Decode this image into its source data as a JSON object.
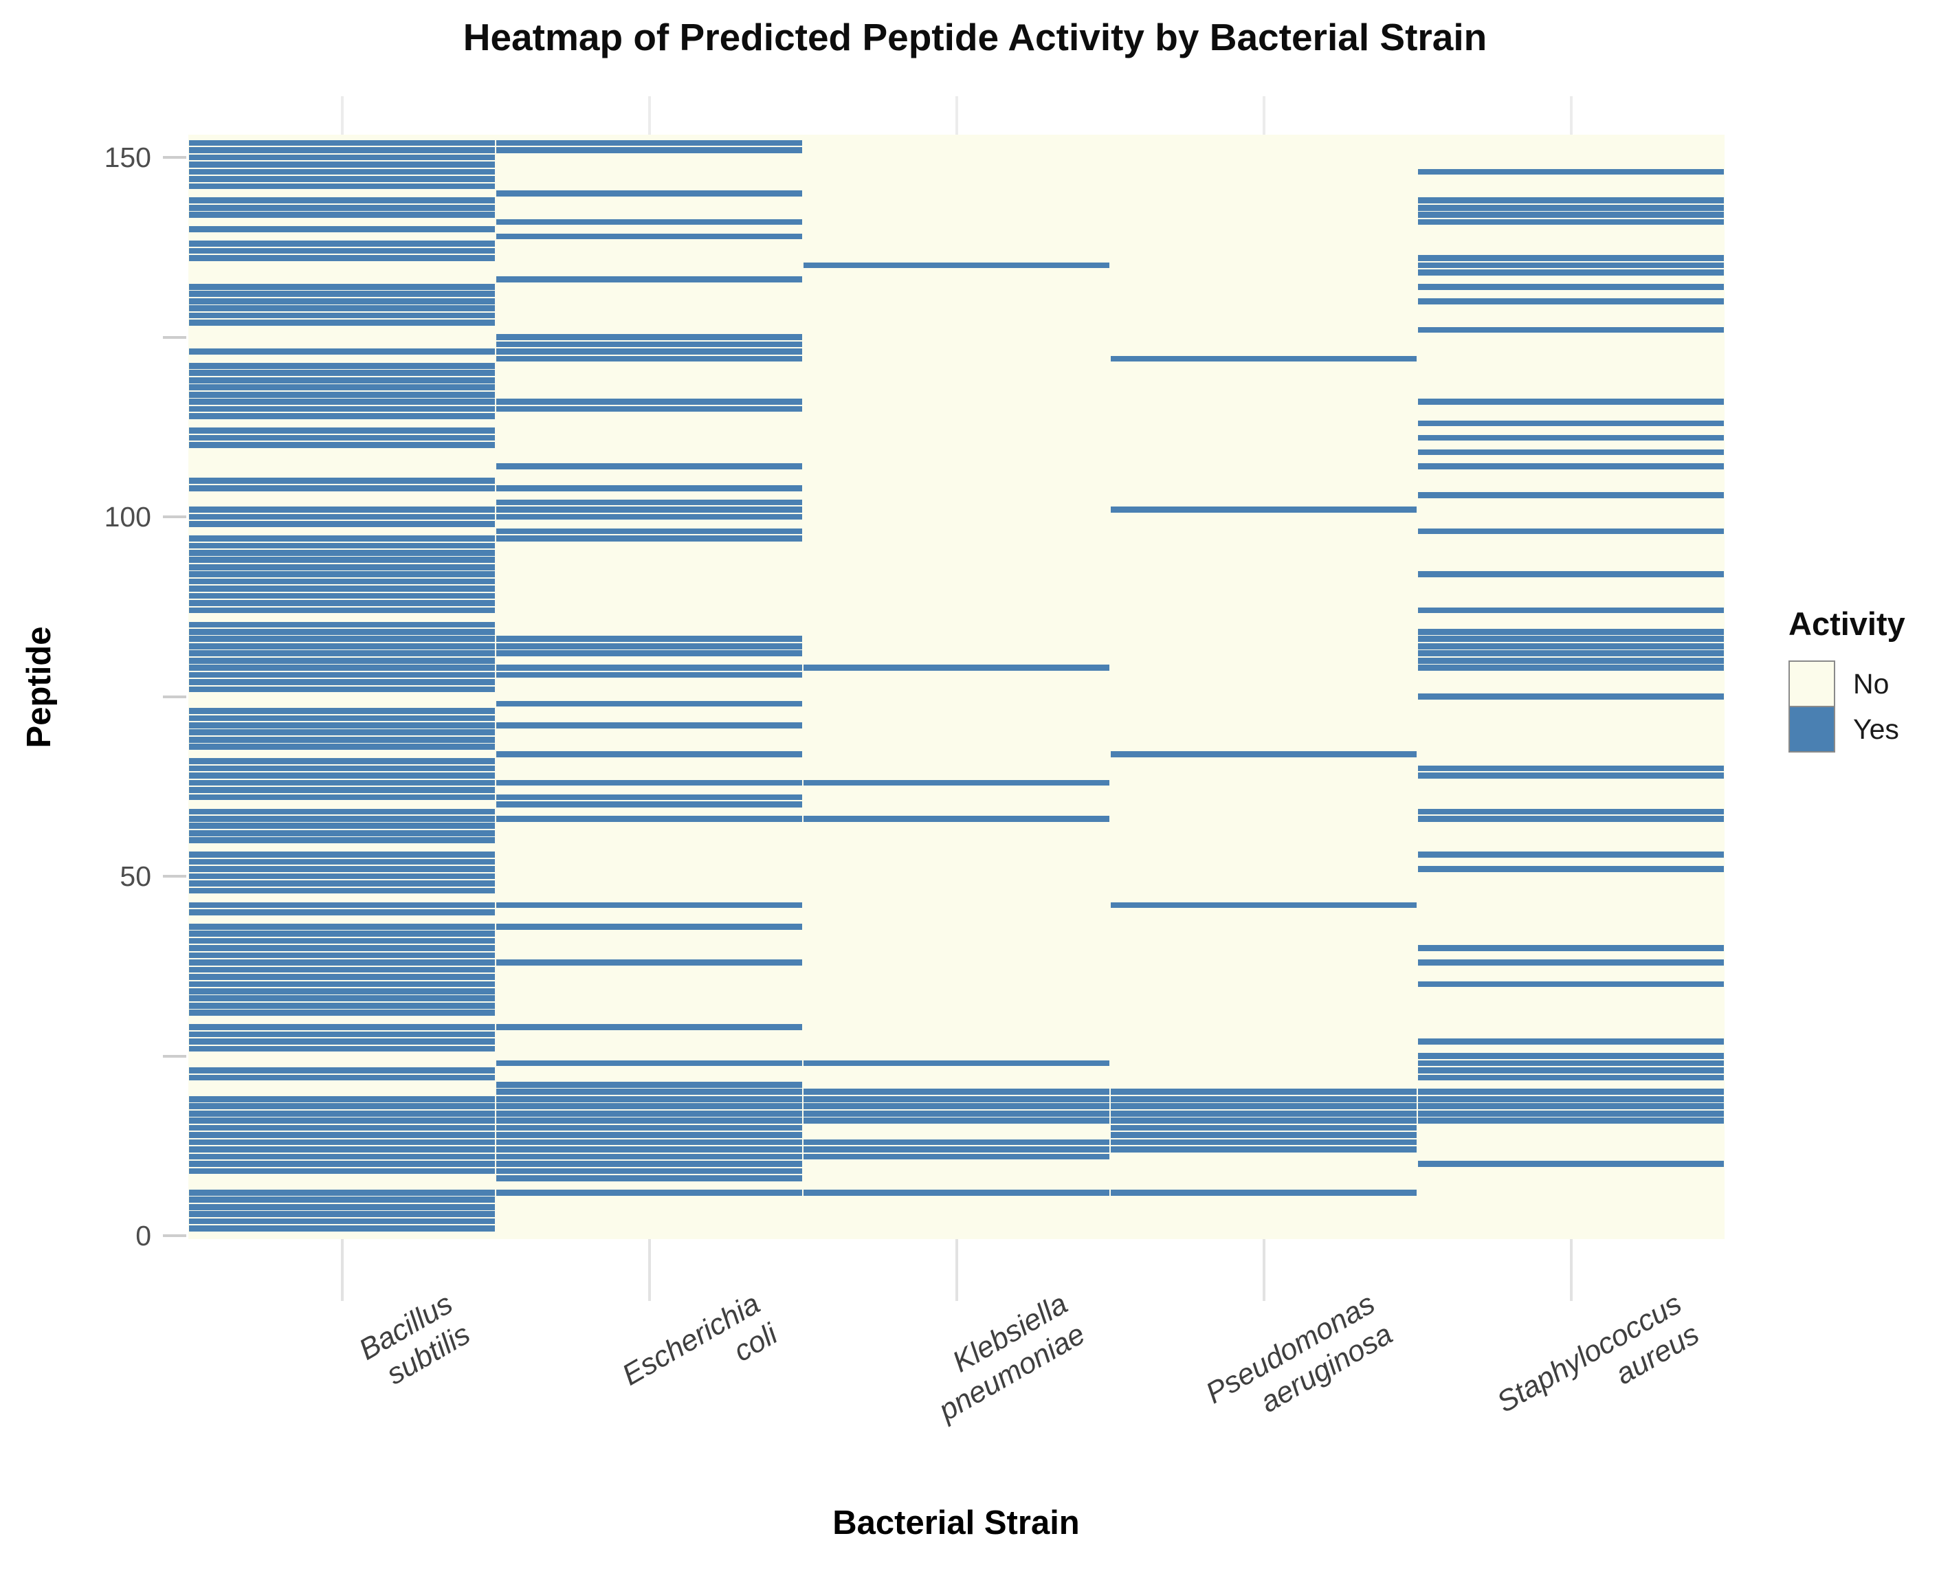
{
  "title": {
    "text": "Heatmap of Predicted Peptide Activity by Bacterial Strain"
  },
  "axes": {
    "x_label": "Bacterial Strain",
    "y_label": "Peptide",
    "y_tick_labels": [
      "0",
      "50",
      "100",
      "150"
    ]
  },
  "legend": {
    "title": "Activity",
    "items": [
      {
        "label": "No",
        "color": "#FCFCEB"
      },
      {
        "label": "Yes",
        "color": "#4A80B2"
      }
    ]
  },
  "colors": {
    "active": "#4A80B2",
    "inactive": "#FCFCEB",
    "tick": "#CDCDCD",
    "tick_label": "#4D4D4D",
    "strain_label": "#3F3F3F"
  },
  "chart_data": {
    "type": "heatmap",
    "title": "Heatmap of Predicted Peptide Activity by Bacterial Strain",
    "xlabel": "Bacterial Strain",
    "ylabel": "Peptide",
    "legend": {
      "title": "Activity",
      "categories": [
        "No",
        "Yes"
      ],
      "colors": {
        "No": "#FCFCEB",
        "Yes": "#4A80B2"
      },
      "position": "right"
    },
    "y_axis": {
      "range": [
        0,
        152
      ],
      "labeled_ticks": [
        0,
        50,
        100,
        150
      ],
      "minor_ticks": [
        25,
        75,
        125
      ]
    },
    "n_peptides": 152,
    "cell_values": {
      "No": 0,
      "Yes": 1
    },
    "strains": [
      {
        "name": "Bacillus subtilis",
        "label_lines": [
          "Bacillus",
          "subtilis"
        ],
        "active_peptide_ranges": [
          [
            1,
            6
          ],
          [
            9,
            19
          ],
          [
            22,
            23
          ],
          [
            26,
            29
          ],
          [
            31,
            43
          ],
          [
            45,
            46
          ],
          [
            48,
            53
          ],
          [
            55,
            59
          ],
          [
            61,
            66
          ],
          [
            68,
            73
          ],
          [
            76,
            85
          ],
          [
            87,
            97
          ],
          [
            99,
            101
          ],
          [
            104,
            105
          ],
          [
            110,
            112
          ],
          [
            114,
            121
          ],
          [
            123,
            123
          ],
          [
            127,
            132
          ],
          [
            136,
            138
          ],
          [
            140,
            140
          ],
          [
            142,
            144
          ],
          [
            146,
            152
          ]
        ]
      },
      {
        "name": "Escherichia coli",
        "label_lines": [
          "Escherichia",
          "coli"
        ],
        "active_peptide_ranges": [
          [
            6,
            6
          ],
          [
            8,
            21
          ],
          [
            24,
            24
          ],
          [
            29,
            29
          ],
          [
            38,
            38
          ],
          [
            43,
            43
          ],
          [
            46,
            46
          ],
          [
            58,
            58
          ],
          [
            60,
            61
          ],
          [
            63,
            63
          ],
          [
            67,
            67
          ],
          [
            71,
            71
          ],
          [
            74,
            74
          ],
          [
            78,
            79
          ],
          [
            81,
            83
          ],
          [
            97,
            98
          ],
          [
            100,
            102
          ],
          [
            104,
            104
          ],
          [
            107,
            107
          ],
          [
            115,
            116
          ],
          [
            122,
            125
          ],
          [
            133,
            133
          ],
          [
            139,
            139
          ],
          [
            141,
            141
          ],
          [
            145,
            145
          ],
          [
            151,
            152
          ]
        ]
      },
      {
        "name": "Klebsiella pneumoniae",
        "label_lines": [
          "Klebsiella",
          "pneumoniae"
        ],
        "active_peptide_ranges": [
          [
            6,
            6
          ],
          [
            11,
            13
          ],
          [
            16,
            20
          ],
          [
            24,
            24
          ],
          [
            58,
            58
          ],
          [
            63,
            63
          ],
          [
            79,
            79
          ],
          [
            135,
            135
          ]
        ]
      },
      {
        "name": "Pseudomonas aeruginosa",
        "label_lines": [
          "Pseudomonas",
          "aeruginosa"
        ],
        "active_peptide_ranges": [
          [
            6,
            6
          ],
          [
            12,
            20
          ],
          [
            46,
            46
          ],
          [
            67,
            67
          ],
          [
            101,
            101
          ],
          [
            122,
            122
          ]
        ]
      },
      {
        "name": "Staphylococcus aureus",
        "label_lines": [
          "Staphylococcus",
          "aureus"
        ],
        "active_peptide_ranges": [
          [
            10,
            10
          ],
          [
            16,
            20
          ],
          [
            22,
            25
          ],
          [
            27,
            27
          ],
          [
            35,
            35
          ],
          [
            38,
            38
          ],
          [
            40,
            40
          ],
          [
            51,
            51
          ],
          [
            53,
            53
          ],
          [
            58,
            59
          ],
          [
            64,
            65
          ],
          [
            75,
            75
          ],
          [
            79,
            84
          ],
          [
            87,
            87
          ],
          [
            92,
            92
          ],
          [
            98,
            98
          ],
          [
            103,
            103
          ],
          [
            107,
            107
          ],
          [
            109,
            109
          ],
          [
            111,
            111
          ],
          [
            113,
            113
          ],
          [
            116,
            116
          ],
          [
            126,
            126
          ],
          [
            130,
            130
          ],
          [
            132,
            132
          ],
          [
            134,
            136
          ],
          [
            141,
            144
          ],
          [
            148,
            148
          ]
        ]
      }
    ]
  }
}
